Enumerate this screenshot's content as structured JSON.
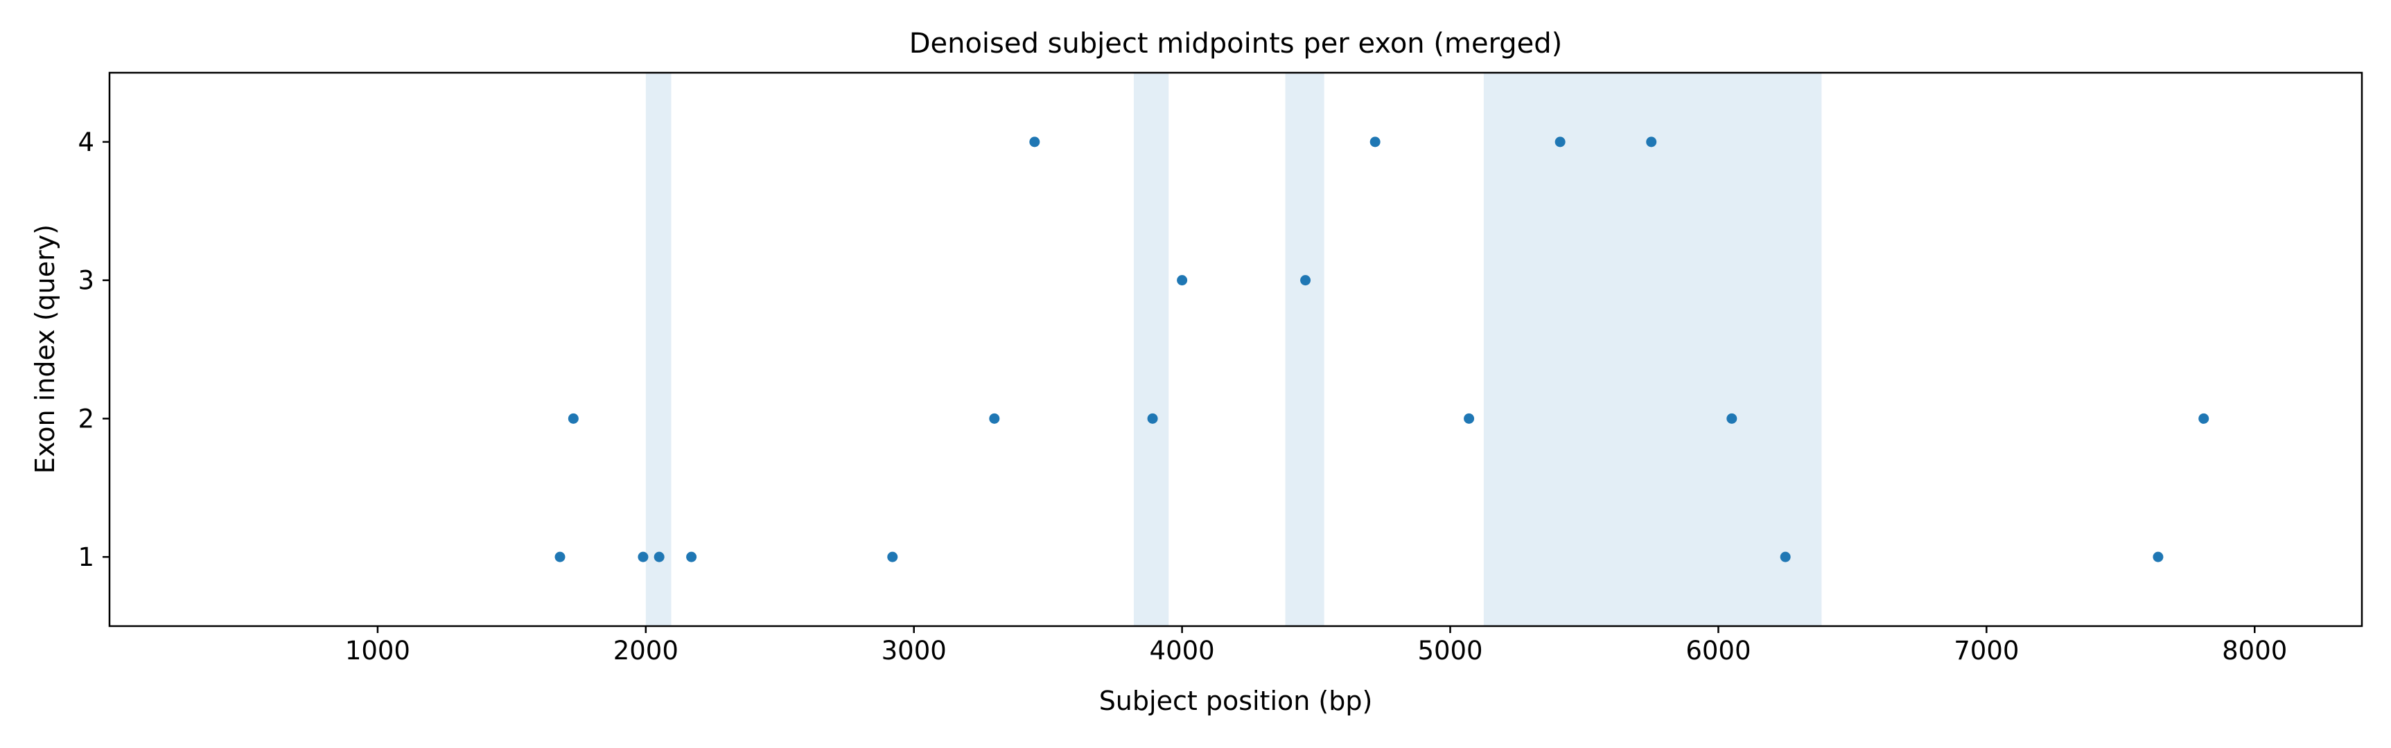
{
  "chart_data": {
    "type": "scatter",
    "title": "Denoised subject midpoints per exon (merged)",
    "xlabel": "Subject position (bp)",
    "ylabel": "Exon index (query)",
    "xlim": [
      0,
      8400
    ],
    "ylim": [
      0.5,
      4.5
    ],
    "xticks": [
      1000,
      2000,
      3000,
      4000,
      5000,
      6000,
      7000,
      8000
    ],
    "yticks": [
      1,
      2,
      3,
      4
    ],
    "grid": false,
    "legend": "none",
    "marker_color": "#1f77b4",
    "band_color": "#e3eef6",
    "shaded_regions": [
      [
        2000,
        2095
      ],
      [
        3820,
        3950
      ],
      [
        4385,
        4530
      ],
      [
        5125,
        6385
      ]
    ],
    "points": [
      {
        "x": 1680,
        "y": 1
      },
      {
        "x": 1990,
        "y": 1
      },
      {
        "x": 2050,
        "y": 1
      },
      {
        "x": 2170,
        "y": 1
      },
      {
        "x": 2920,
        "y": 1
      },
      {
        "x": 6250,
        "y": 1
      },
      {
        "x": 7640,
        "y": 1
      },
      {
        "x": 1730,
        "y": 2
      },
      {
        "x": 3300,
        "y": 2
      },
      {
        "x": 3890,
        "y": 2
      },
      {
        "x": 5070,
        "y": 2
      },
      {
        "x": 6050,
        "y": 2
      },
      {
        "x": 7810,
        "y": 2
      },
      {
        "x": 4000,
        "y": 3
      },
      {
        "x": 4460,
        "y": 3
      },
      {
        "x": 3450,
        "y": 4
      },
      {
        "x": 4720,
        "y": 4
      },
      {
        "x": 5410,
        "y": 4
      },
      {
        "x": 5750,
        "y": 4
      }
    ]
  }
}
